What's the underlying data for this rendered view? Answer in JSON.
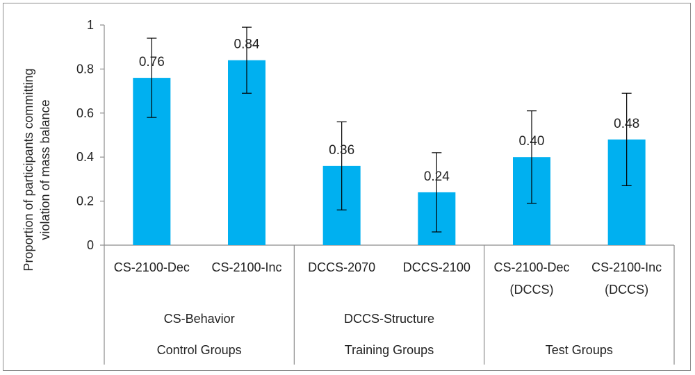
{
  "chart_data": {
    "type": "bar",
    "title": "",
    "xlabel": "",
    "ylabel": "Proportion  of participants committing violation of mass balance",
    "ylabel_lines": [
      "Proportion  of participants committing",
      "violation of mass balance"
    ],
    "ylim": [
      0,
      1
    ],
    "yticks": [
      0,
      0.2,
      0.4,
      0.6,
      0.8,
      1
    ],
    "ytick_labels": [
      "0",
      "0.2",
      "0.4",
      "0.6",
      "0.8",
      "1"
    ],
    "grid": false,
    "bar_color": "#00b0f0",
    "categories": [
      {
        "lines": [
          "CS-2100-Dec"
        ]
      },
      {
        "lines": [
          "CS-2100-Inc"
        ]
      },
      {
        "lines": [
          "DCCS-2070"
        ]
      },
      {
        "lines": [
          "DCCS-2100"
        ]
      },
      {
        "lines": [
          "CS-2100-Dec",
          "(DCCS)"
        ]
      },
      {
        "lines": [
          "CS-2100-Inc",
          "(DCCS)"
        ]
      }
    ],
    "values": [
      0.76,
      0.84,
      0.36,
      0.24,
      0.4,
      0.48
    ],
    "data_labels": [
      "0.76",
      "0.84",
      "0.36",
      "0.24",
      "0.40",
      "0.48"
    ],
    "error_low": [
      0.58,
      0.69,
      0.16,
      0.06,
      0.19,
      0.27
    ],
    "error_high": [
      0.94,
      0.99,
      0.56,
      0.42,
      0.61,
      0.69
    ],
    "subgroups": [
      {
        "label": "CS-Behavior",
        "categories": [
          0,
          1
        ]
      },
      {
        "label": "DCCS-Structure",
        "categories": [
          2,
          3
        ]
      },
      {
        "label": "",
        "categories": [
          4,
          5
        ]
      }
    ],
    "groups": [
      {
        "label": "Control Groups",
        "categories": [
          0,
          1
        ]
      },
      {
        "label": "Training Groups",
        "categories": [
          2,
          3
        ]
      },
      {
        "label": "Test Groups",
        "categories": [
          4,
          5
        ]
      }
    ]
  }
}
